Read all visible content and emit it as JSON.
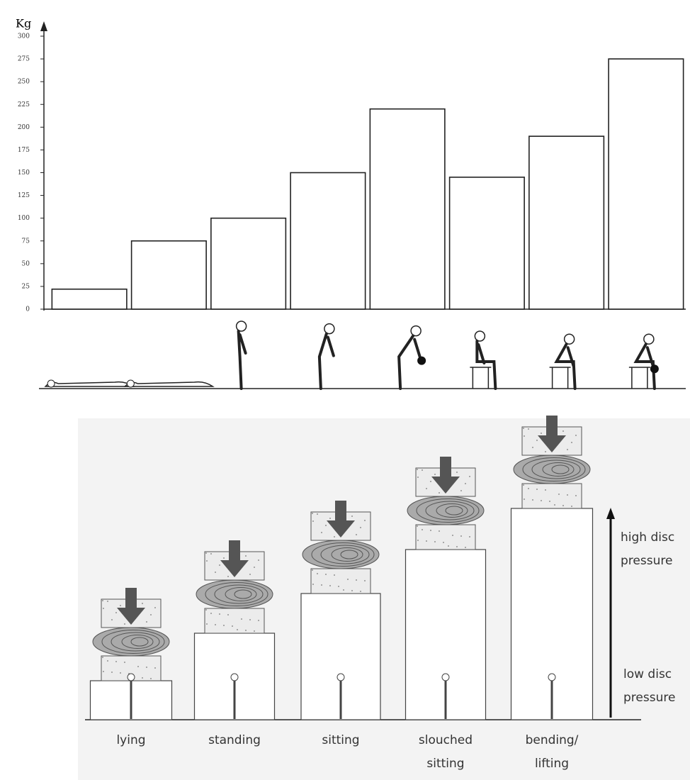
{
  "chart_data": {
    "type": "bar",
    "y_label": "Kg",
    "categories": [
      null,
      null,
      null,
      null,
      null,
      null,
      null,
      null
    ],
    "values": [
      22,
      75,
      100,
      150,
      220,
      145,
      190,
      275
    ],
    "color": "#ffffff",
    "ylim": [
      0,
      300
    ],
    "yticks": [
      0,
      25,
      50,
      75,
      100,
      125,
      150,
      175,
      200,
      225,
      250,
      275,
      300
    ],
    "grid": false
  },
  "diagram": {
    "postures": [
      "lying",
      "standing",
      "sitting",
      "slouched\nsitting",
      "bending/\nlifting"
    ],
    "high_label": "high disc\npressure",
    "low_label": "low disc\npressure"
  }
}
